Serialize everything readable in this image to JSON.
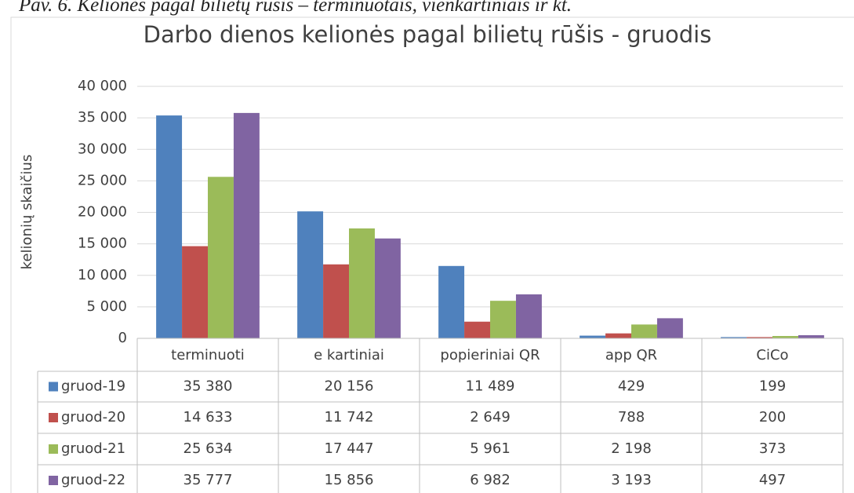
{
  "chart_data": {
    "type": "bar",
    "caption": "Pav. 6. Kelionės pagal bilietų rūšis – terminuotais, vienkartiniais ir kt.",
    "title": "Darbo dienos kelionės pagal bilietų rūšis - gruodis",
    "y_label": "kelionių skaičius",
    "categories": [
      "terminuoti",
      "e kartiniai",
      "popieriniai QR",
      "app QR",
      "CiCo"
    ],
    "series": [
      {
        "name": "gruod-19",
        "color": "#4f81bd",
        "values": [
          35380,
          20156,
          11489,
          429,
          199
        ],
        "value_labels": [
          "35 380",
          "20 156",
          "11 489",
          "429",
          "199"
        ]
      },
      {
        "name": "gruod-20",
        "color": "#c0504d",
        "values": [
          14633,
          11742,
          2649,
          788,
          200
        ],
        "value_labels": [
          "14 633",
          "11 742",
          "2 649",
          "788",
          "200"
        ]
      },
      {
        "name": "gruod-21",
        "color": "#9bbb59",
        "values": [
          25634,
          17447,
          5961,
          2198,
          373
        ],
        "value_labels": [
          "25 634",
          "17 447",
          "5 961",
          "2 198",
          "373"
        ]
      },
      {
        "name": "gruod-22",
        "color": "#8064a2",
        "values": [
          35777,
          15856,
          6982,
          3193,
          497
        ],
        "value_labels": [
          "35 777",
          "15 856",
          "6 982",
          "3 193",
          "497"
        ]
      }
    ],
    "ylim": [
      0,
      40000
    ],
    "yticks": [
      0,
      {
        "value": 5000,
        "label": "5 000"
      },
      {
        "value": 10000,
        "label": "10 000"
      },
      {
        "value": 15000,
        "label": "15 000"
      },
      {
        "value": 20000,
        "label": "20 000"
      },
      {
        "value": 25000,
        "label": "25 000"
      },
      {
        "value": 30000,
        "label": "30 000"
      },
      {
        "value": 35000,
        "label": "35 000"
      },
      {
        "value": 40000,
        "label": "40 000"
      }
    ],
    "grid": true
  }
}
